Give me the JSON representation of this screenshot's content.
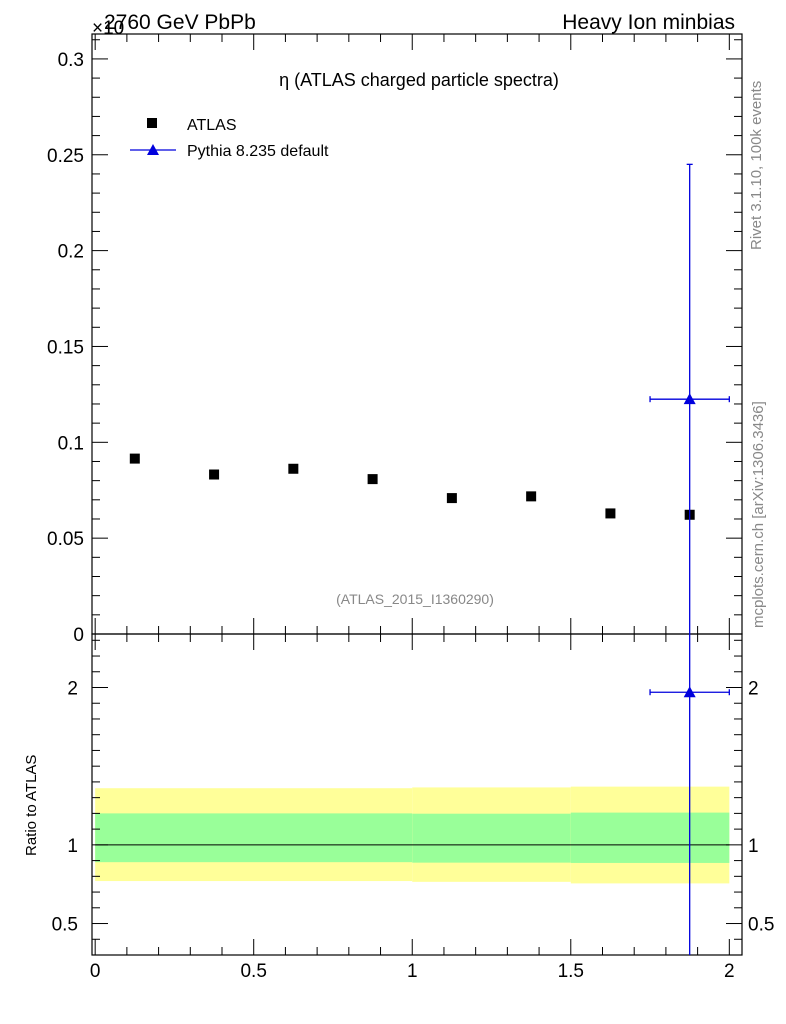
{
  "header": {
    "left": "2760 GeV PbPb",
    "right": "Heavy Ion minbias",
    "multiplier": "×10"
  },
  "side_labels": {
    "rivet": "Rivet 3.1.10,  100k events",
    "mcplots": "mcplots.cern.ch [arXiv:1306.3436]"
  },
  "chart_data": {
    "type": "scatter",
    "title": "η (ATLAS charged particle spectra)",
    "watermark": "(ATLAS_2015_I1360290)",
    "xlim": [
      -0.01,
      2.04
    ],
    "ylim": [
      0,
      0.313
    ],
    "y_multiplier_label": "×10",
    "x_ticks": [
      {
        "v": 0,
        "label": "0"
      },
      {
        "v": 0.5,
        "label": "0.5"
      },
      {
        "v": 1,
        "label": "1"
      },
      {
        "v": 1.5,
        "label": "1.5"
      },
      {
        "v": 2,
        "label": "2"
      }
    ],
    "y_ticks": [
      {
        "v": 0,
        "label": "0"
      },
      {
        "v": 0.05,
        "label": "0.05"
      },
      {
        "v": 0.1,
        "label": "0.1"
      },
      {
        "v": 0.15,
        "label": "0.15"
      },
      {
        "v": 0.2,
        "label": "0.2"
      },
      {
        "v": 0.25,
        "label": "0.25"
      },
      {
        "v": 0.3,
        "label": "0.3"
      }
    ],
    "legend": [
      {
        "name": "ATLAS",
        "marker": "square",
        "color": "#000000"
      },
      {
        "name": "Pythia 8.235 default",
        "marker": "triangle",
        "color": "#0000dd"
      }
    ],
    "series": [
      {
        "name": "ATLAS",
        "color": "#000000",
        "points": [
          {
            "x": 0.125,
            "y": 0.0915
          },
          {
            "x": 0.375,
            "y": 0.0832
          },
          {
            "x": 0.625,
            "y": 0.0862
          },
          {
            "x": 0.875,
            "y": 0.0808
          },
          {
            "x": 1.125,
            "y": 0.0709
          },
          {
            "x": 1.375,
            "y": 0.0718
          },
          {
            "x": 1.625,
            "y": 0.0629
          },
          {
            "x": 1.875,
            "y": 0.0622
          }
        ]
      },
      {
        "name": "Pythia 8.235 default",
        "color": "#0000dd",
        "points": [
          {
            "x": 1.875,
            "y": 0.1225,
            "xerr": 0.125,
            "yerr_low": 0.1225,
            "yerr_high": 0.1225
          }
        ]
      }
    ],
    "ratio": {
      "ylabel": "Ratio to ATLAS",
      "ylim": [
        0.3,
        2.34
      ],
      "y_ticks": [
        {
          "v": 0.5,
          "label": "0.5"
        },
        {
          "v": 1,
          "label": "1"
        },
        {
          "v": 2,
          "label": "2"
        }
      ],
      "reference": 1,
      "bands": [
        {
          "x0": 0.0,
          "x1": 1.0,
          "yellow": [
            0.77,
            1.36
          ],
          "green": [
            0.89,
            1.2
          ]
        },
        {
          "x0": 1.0,
          "x1": 1.5,
          "yellow": [
            0.765,
            1.365
          ],
          "green": [
            0.887,
            1.198
          ]
        },
        {
          "x0": 1.5,
          "x1": 2.0,
          "yellow": [
            0.755,
            1.37
          ],
          "green": [
            0.885,
            1.205
          ]
        }
      ],
      "band_colors": {
        "yellow": "#ffff99",
        "green": "#99ff99"
      },
      "points": [
        {
          "x": 1.875,
          "y": 1.97,
          "xerr": 0.125,
          "yerr_low": 1.97,
          "yerr_high": 1.97
        }
      ]
    }
  }
}
